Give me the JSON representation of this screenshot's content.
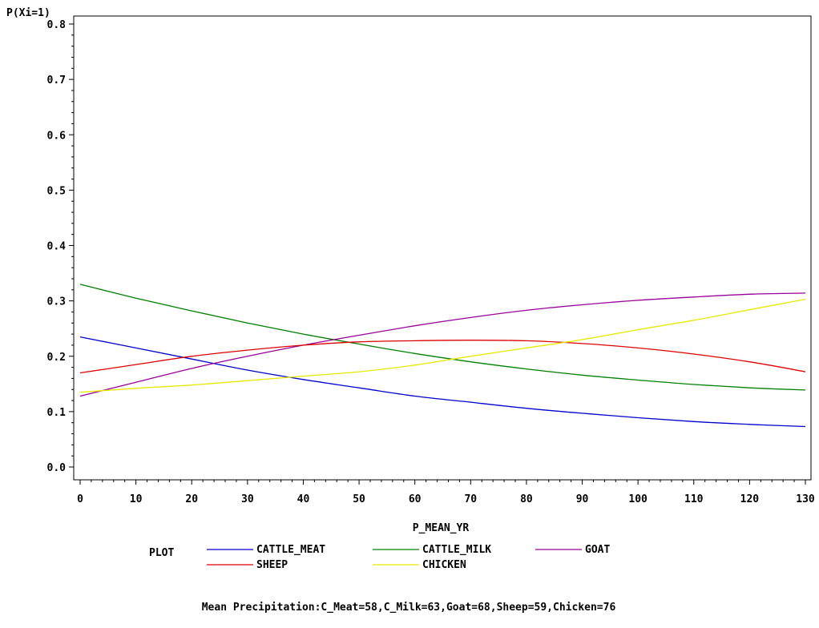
{
  "chart_data": {
    "type": "line",
    "ylabel": "P(Xi=1)",
    "xlabel": "P_MEAN_YR",
    "xlim": [
      0,
      130
    ],
    "ylim": [
      0,
      0.8
    ],
    "x_ticks": [
      "0",
      "10",
      "20",
      "30",
      "40",
      "50",
      "60",
      "70",
      "80",
      "90",
      "100",
      "110",
      "120",
      "130"
    ],
    "y_ticks": [
      "0.0",
      "0.1",
      "0.2",
      "0.3",
      "0.4",
      "0.5",
      "0.6",
      "0.7",
      "0.8"
    ],
    "grid": false,
    "legend": {
      "title": "PLOT",
      "placement": "bottom"
    },
    "footnote": "Mean Precipitation:C_Meat=58,C_Milk=63,Goat=68,Sheep=59,Chicken=76",
    "x": [
      0,
      10,
      20,
      30,
      40,
      50,
      60,
      70,
      80,
      90,
      100,
      110,
      120,
      130
    ],
    "series": [
      {
        "name": "CATTLE_MEAT",
        "color": "#0000cc",
        "values": [
          0.235,
          0.215,
          0.195,
          0.175,
          0.158,
          0.143,
          0.128,
          0.117,
          0.106,
          0.097,
          0.089,
          0.082,
          0.077,
          0.073
        ]
      },
      {
        "name": "CATTLE_MILK",
        "color": "#008000",
        "values": [
          0.33,
          0.305,
          0.282,
          0.26,
          0.24,
          0.222,
          0.205,
          0.19,
          0.177,
          0.166,
          0.157,
          0.149,
          0.143,
          0.139
        ]
      },
      {
        "name": "GOAT",
        "color": "#990099",
        "values": [
          0.128,
          0.153,
          0.178,
          0.2,
          0.22,
          0.238,
          0.255,
          0.27,
          0.283,
          0.293,
          0.301,
          0.307,
          0.312,
          0.314
        ]
      },
      {
        "name": "SHEEP",
        "color": "#dd0000",
        "values": [
          0.17,
          0.185,
          0.2,
          0.211,
          0.22,
          0.226,
          0.228,
          0.229,
          0.228,
          0.223,
          0.215,
          0.204,
          0.19,
          0.172
        ]
      },
      {
        "name": "CHICKEN",
        "color": "#e8e800",
        "values": [
          0.135,
          0.142,
          0.148,
          0.156,
          0.164,
          0.172,
          0.184,
          0.2,
          0.215,
          0.23,
          0.248,
          0.265,
          0.284,
          0.303
        ]
      }
    ]
  }
}
